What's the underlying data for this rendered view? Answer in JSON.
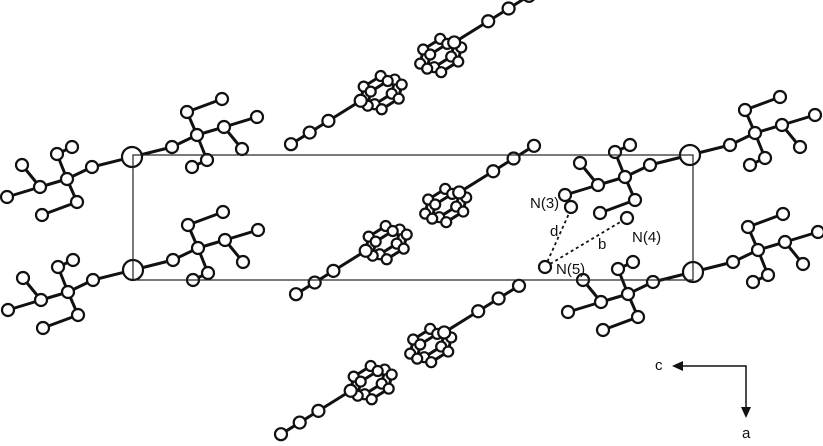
{
  "atom_labels": [
    "N(3)",
    "N(4)",
    "N(5)"
  ],
  "distance_labels": [
    "d",
    "b"
  ],
  "axis_labels": [
    "c",
    "a"
  ]
}
